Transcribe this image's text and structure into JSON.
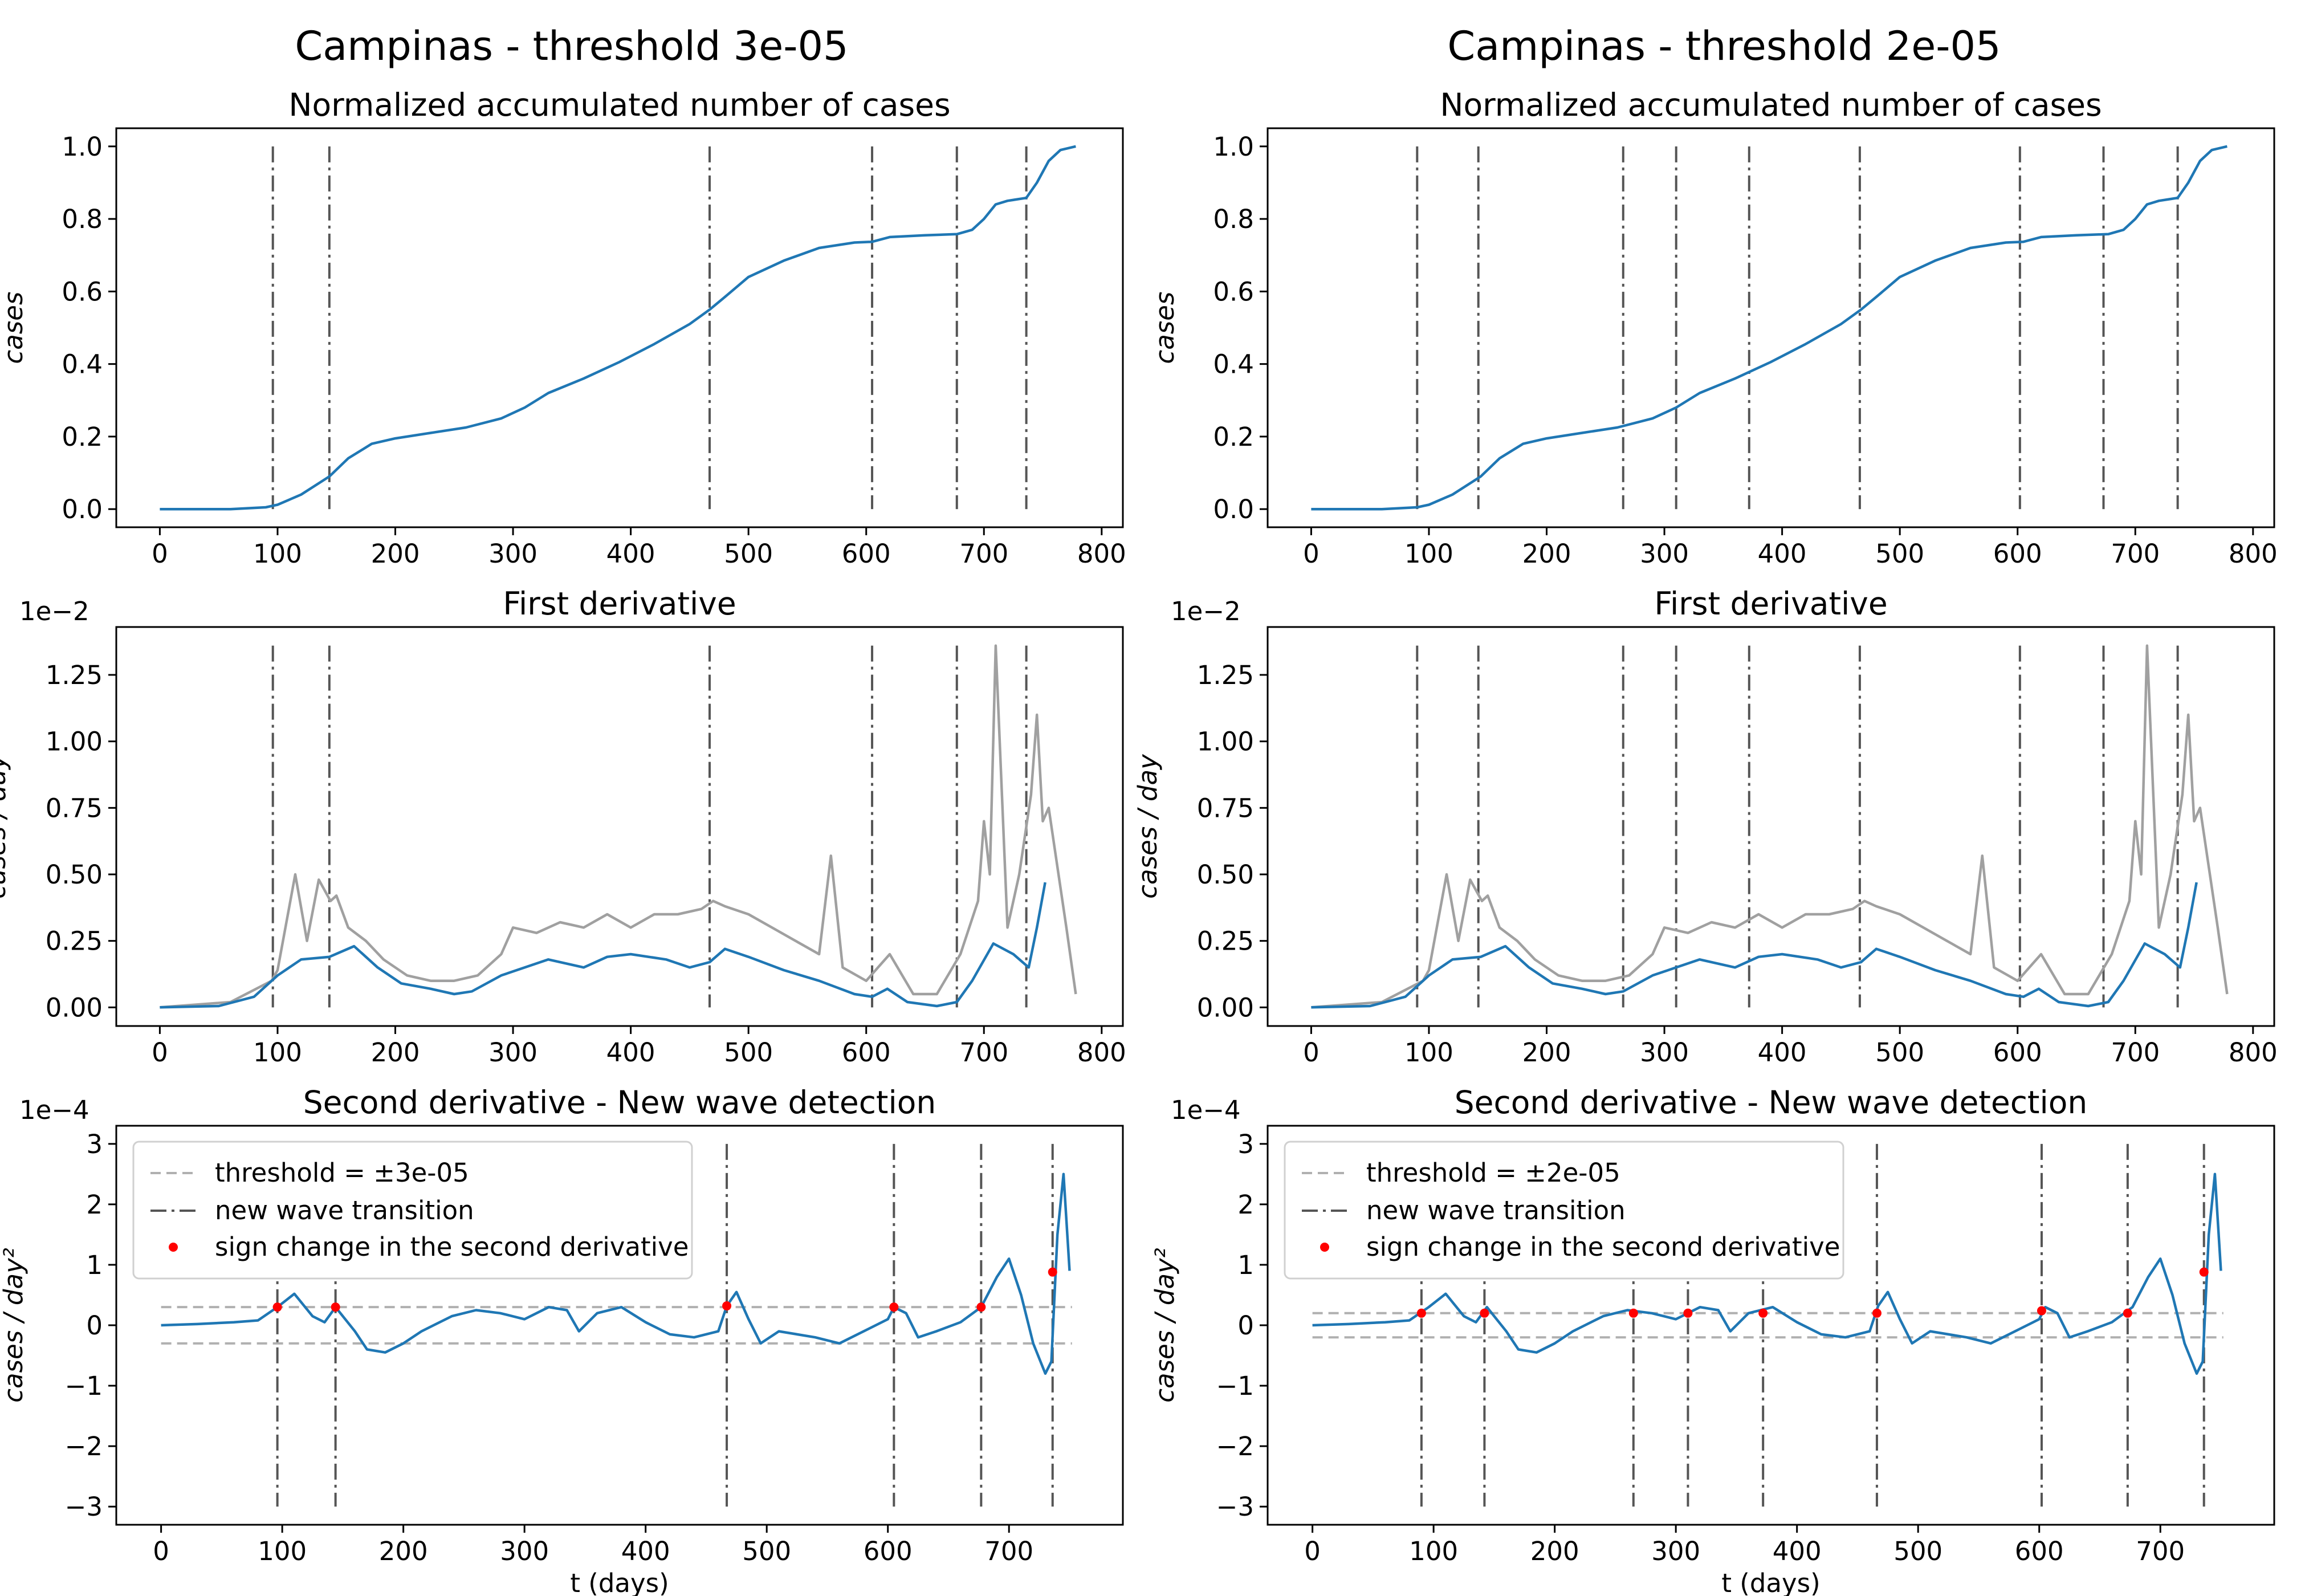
{
  "columns": [
    {
      "figure_title": "Campinas - threshold 3e-05",
      "transitions": [
        96,
        144,
        467,
        605,
        677,
        736
      ],
      "sign_changes": [
        [
          96,
          0.3
        ],
        [
          144,
          0.3
        ],
        [
          467,
          0.32
        ],
        [
          605,
          0.3
        ],
        [
          677,
          0.3
        ],
        [
          736,
          0.88
        ]
      ],
      "threshold": 0.3,
      "legend": [
        "threshold = ±3e-05",
        "new wave transition",
        "sign change in the second derivative"
      ]
    },
    {
      "figure_title": "Campinas - threshold 2e-05",
      "transitions": [
        90,
        142,
        265,
        310,
        372,
        466,
        602,
        673,
        736
      ],
      "sign_changes": [
        [
          90,
          0.2
        ],
        [
          142,
          0.2
        ],
        [
          265,
          0.2
        ],
        [
          310,
          0.2
        ],
        [
          372,
          0.2
        ],
        [
          466,
          0.2
        ],
        [
          602,
          0.24
        ],
        [
          673,
          0.2
        ],
        [
          736,
          0.88
        ]
      ],
      "threshold": 0.2,
      "legend": [
        "threshold = ±2e-05",
        "new wave transition",
        "sign change in the second derivative"
      ]
    }
  ],
  "colors": {
    "curve": "#1f77b4",
    "raw": "#a0a0a0",
    "threshold": "#b0b0b0",
    "transition": "#555555",
    "point": "#ff0000"
  },
  "chart_data": [
    {
      "type": "line",
      "title": "Normalized accumulated number of cases",
      "xlabel": "",
      "ylabel": "cases",
      "xlim": [
        -37,
        818
      ],
      "ylim": [
        -0.05,
        1.05
      ],
      "xticks": [
        0,
        100,
        200,
        300,
        400,
        500,
        600,
        700,
        800
      ],
      "yticks": [
        0.0,
        0.2,
        0.4,
        0.6,
        0.8,
        1.0
      ],
      "ytick_labels": [
        "0.0",
        "0.2",
        "0.4",
        "0.6",
        "0.8",
        "1.0"
      ],
      "series": [
        {
          "x": [
            0,
            60,
            90,
            100,
            120,
            144,
            160,
            180,
            200,
            230,
            260,
            290,
            310,
            330,
            360,
            390,
            420,
            450,
            467,
            480,
            500,
            530,
            560,
            590,
            605,
            620,
            650,
            677,
            690,
            700,
            710,
            720,
            736,
            745,
            755,
            765,
            778
          ],
          "y": [
            0.0,
            0.0,
            0.005,
            0.012,
            0.04,
            0.09,
            0.14,
            0.18,
            0.195,
            0.21,
            0.225,
            0.25,
            0.28,
            0.32,
            0.36,
            0.405,
            0.455,
            0.51,
            0.55,
            0.585,
            0.64,
            0.685,
            0.72,
            0.735,
            0.737,
            0.75,
            0.755,
            0.758,
            0.77,
            0.8,
            0.84,
            0.85,
            0.858,
            0.9,
            0.96,
            0.99,
            1.0
          ]
        }
      ]
    },
    {
      "type": "line",
      "title": "First derivative",
      "xlabel": "",
      "ylabel": "cases / day",
      "scale_label": "1e−2",
      "xlim": [
        -37,
        818
      ],
      "ylim": [
        -0.07,
        1.43
      ],
      "xticks": [
        0,
        100,
        200,
        300,
        400,
        500,
        600,
        700,
        800
      ],
      "yticks": [
        0.0,
        0.25,
        0.5,
        0.75,
        1.0,
        1.25
      ],
      "ytick_labels": [
        "0.00",
        "0.25",
        "0.50",
        "0.75",
        "1.00",
        "1.25"
      ],
      "series": [
        {
          "name": "smoothed",
          "x": [
            0,
            50,
            80,
            100,
            120,
            144,
            165,
            185,
            205,
            230,
            250,
            265,
            290,
            310,
            330,
            360,
            380,
            400,
            430,
            450,
            467,
            480,
            500,
            530,
            560,
            590,
            605,
            618,
            635,
            660,
            677,
            690,
            708,
            725,
            738,
            745,
            752
          ],
          "y": [
            0.0,
            0.005,
            0.04,
            0.12,
            0.18,
            0.19,
            0.23,
            0.15,
            0.09,
            0.07,
            0.05,
            0.06,
            0.12,
            0.15,
            0.18,
            0.15,
            0.19,
            0.2,
            0.18,
            0.15,
            0.17,
            0.22,
            0.19,
            0.14,
            0.1,
            0.05,
            0.04,
            0.07,
            0.02,
            0.005,
            0.02,
            0.1,
            0.24,
            0.2,
            0.15,
            0.3,
            0.47
          ]
        },
        {
          "name": "raw",
          "x": [
            0,
            60,
            95,
            100,
            115,
            125,
            135,
            145,
            150,
            160,
            175,
            190,
            210,
            230,
            250,
            270,
            290,
            300,
            320,
            340,
            360,
            380,
            400,
            420,
            440,
            460,
            470,
            480,
            500,
            520,
            540,
            560,
            570,
            580,
            600,
            610,
            620,
            640,
            660,
            680,
            695,
            700,
            705,
            710,
            720,
            730,
            740,
            745,
            750,
            755,
            760,
            770,
            778
          ],
          "y": [
            0.0,
            0.02,
            0.1,
            0.14,
            0.5,
            0.25,
            0.48,
            0.4,
            0.42,
            0.3,
            0.25,
            0.18,
            0.12,
            0.1,
            0.1,
            0.12,
            0.2,
            0.3,
            0.28,
            0.32,
            0.3,
            0.35,
            0.3,
            0.35,
            0.35,
            0.37,
            0.4,
            0.38,
            0.35,
            0.3,
            0.25,
            0.2,
            0.57,
            0.15,
            0.1,
            0.15,
            0.2,
            0.05,
            0.05,
            0.2,
            0.4,
            0.7,
            0.5,
            1.36,
            0.3,
            0.5,
            0.8,
            1.1,
            0.7,
            0.75,
            0.6,
            0.3,
            0.05
          ]
        }
      ]
    },
    {
      "type": "line",
      "title": "Second derivative - New wave detection",
      "xlabel": "t (days)",
      "ylabel": "cases / day²",
      "scale_label": "1e−4",
      "xlim": [
        -37,
        794
      ],
      "ylim": [
        -3.3,
        3.3
      ],
      "xticks": [
        0,
        100,
        200,
        300,
        400,
        500,
        600,
        700
      ],
      "yticks": [
        -3,
        -2,
        -1,
        0,
        1,
        2,
        3
      ],
      "ytick_labels": [
        "−3",
        "−2",
        "−1",
        "0",
        "1",
        "2",
        "3"
      ],
      "series": [
        {
          "name": "second derivative",
          "x": [
            0,
            30,
            60,
            80,
            96,
            110,
            125,
            135,
            144,
            160,
            170,
            185,
            200,
            215,
            240,
            260,
            280,
            300,
            320,
            335,
            345,
            360,
            380,
            400,
            420,
            440,
            460,
            467,
            475,
            485,
            495,
            510,
            540,
            560,
            580,
            600,
            605,
            615,
            625,
            640,
            660,
            677,
            690,
            700,
            710,
            720,
            730,
            735,
            740,
            745,
            750
          ],
          "y": [
            0.0,
            0.02,
            0.05,
            0.08,
            0.3,
            0.52,
            0.15,
            0.05,
            0.3,
            -0.1,
            -0.4,
            -0.45,
            -0.3,
            -0.1,
            0.15,
            0.25,
            0.2,
            0.1,
            0.3,
            0.25,
            -0.1,
            0.2,
            0.3,
            0.05,
            -0.15,
            -0.2,
            -0.1,
            0.32,
            0.55,
            0.1,
            -0.3,
            -0.1,
            -0.2,
            -0.3,
            -0.1,
            0.1,
            0.3,
            0.2,
            -0.2,
            -0.1,
            0.05,
            0.3,
            0.8,
            1.1,
            0.5,
            -0.3,
            -0.8,
            -0.6,
            1.5,
            2.5,
            0.9
          ]
        }
      ]
    }
  ]
}
